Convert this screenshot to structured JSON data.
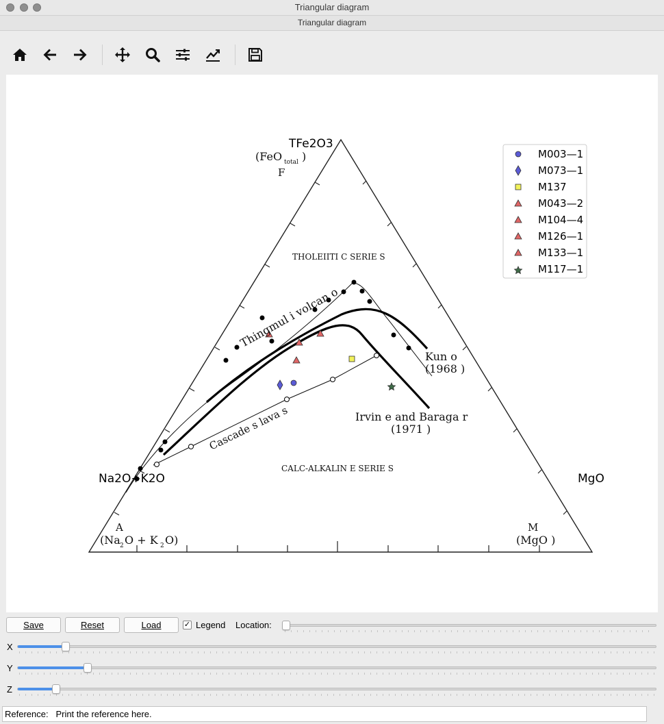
{
  "window": {
    "title": "Triangular diagram",
    "subtitle": "Triangular diagram"
  },
  "toolbar": {
    "icons": [
      "home-icon",
      "back-arrow-icon",
      "forward-arrow-icon",
      "pan-icon",
      "zoom-icon",
      "subplots-config-icon",
      "edit-axis-icon",
      "save-figure-icon"
    ]
  },
  "plot": {
    "vertex_labels": {
      "top": "TFe2O3",
      "left": "Na2O+K2O",
      "right": "MgO"
    },
    "figure_text": {
      "top_line1": "(FeO",
      "top_sub": "total",
      "top_close": ")",
      "top_letter": "F",
      "left_letter": "A",
      "left_line": "(Na",
      "left_sub1": "2",
      "left_mid": "O + K",
      "left_sub2": "2",
      "left_end": "O)",
      "right_letter": "M",
      "right_line": "(MgO )",
      "tholeiitic": "THOLEIITI C SERIE S",
      "calc_alkaline": "CALC-ALKALIN E SERIE S",
      "thingmuli": "Thingmul i volcan o",
      "cascades": "Cascade s lava s",
      "kuno_name": "Kun o",
      "kuno_year": "(1968 )",
      "irvine_name": "Irvin e and Baraga r",
      "irvine_year": "(1971 )"
    },
    "legend": [
      {
        "name": "M003—1",
        "marker": "circle",
        "color": "#5b5bd6"
      },
      {
        "name": "M073—1",
        "marker": "diamond",
        "color": "#5b5bd6"
      },
      {
        "name": "M137",
        "marker": "square",
        "color": "#f2f25a"
      },
      {
        "name": "M043—2",
        "marker": "triangle",
        "color": "#e06666"
      },
      {
        "name": "M104—4",
        "marker": "triangle",
        "color": "#e06666"
      },
      {
        "name": "M126—1",
        "marker": "triangle",
        "color": "#e06666"
      },
      {
        "name": "M133—1",
        "marker": "triangle",
        "color": "#e06666"
      },
      {
        "name": "M117—1",
        "marker": "star",
        "color": "#3f6b48"
      }
    ]
  },
  "controls": {
    "save_label": "Save",
    "reset_label": "Reset",
    "load_label": "Load",
    "legend_label": "Legend",
    "legend_checked": true,
    "location_label": "Location:",
    "x_label": "X",
    "y_label": "Y",
    "z_label": "Z",
    "location_value": 0.0,
    "x_value": 0.07,
    "y_value": 0.105,
    "z_value": 0.055
  },
  "reference": {
    "label": "Reference:",
    "text": "Print the reference here."
  }
}
